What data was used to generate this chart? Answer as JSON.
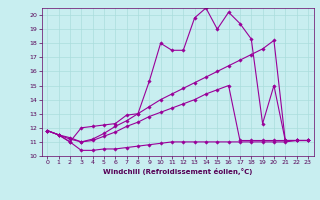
{
  "xlabel": "Windchill (Refroidissement éolien,°C)",
  "xlim": [
    -0.5,
    23.5
  ],
  "ylim": [
    10,
    20.5
  ],
  "yticks": [
    10,
    11,
    12,
    13,
    14,
    15,
    16,
    17,
    18,
    19,
    20
  ],
  "xticks": [
    0,
    1,
    2,
    3,
    4,
    5,
    6,
    7,
    8,
    9,
    10,
    11,
    12,
    13,
    14,
    15,
    16,
    17,
    18,
    19,
    20,
    21,
    22,
    23
  ],
  "background_color": "#c8eef0",
  "line_color": "#990099",
  "grid_color": "#aadddd",
  "lines": [
    {
      "x": [
        0,
        1,
        2,
        3,
        4,
        5,
        6,
        7,
        8,
        9,
        10,
        11,
        12,
        13,
        14,
        15,
        16,
        17,
        18,
        19,
        20,
        21,
        22,
        23
      ],
      "y": [
        11.8,
        11.5,
        11.0,
        10.4,
        10.4,
        10.5,
        10.5,
        10.6,
        10.7,
        10.8,
        10.9,
        11.0,
        11.0,
        11.0,
        11.0,
        11.0,
        11.0,
        11.0,
        11.0,
        11.0,
        11.0,
        11.0,
        11.1,
        11.1
      ]
    },
    {
      "x": [
        0,
        1,
        2,
        3,
        4,
        5,
        6,
        7,
        8,
        9,
        10,
        11,
        12,
        13,
        14,
        15,
        16,
        17,
        18,
        19,
        20,
        21,
        22,
        23
      ],
      "y": [
        11.8,
        11.5,
        11.0,
        12.0,
        12.1,
        12.2,
        12.3,
        12.9,
        13.0,
        15.3,
        18.0,
        17.5,
        17.5,
        19.8,
        20.5,
        19.0,
        20.2,
        19.4,
        18.3,
        12.3,
        15.0,
        11.1,
        11.1,
        11.1
      ]
    },
    {
      "x": [
        0,
        1,
        2,
        3,
        4,
        5,
        6,
        7,
        8,
        9,
        10,
        11,
        12,
        13,
        14,
        15,
        16,
        17,
        18,
        19,
        20,
        21,
        22,
        23
      ],
      "y": [
        11.8,
        11.5,
        11.3,
        11.0,
        11.2,
        11.6,
        12.1,
        12.5,
        13.0,
        13.5,
        14.0,
        14.4,
        14.8,
        15.2,
        15.6,
        16.0,
        16.4,
        16.8,
        17.2,
        17.6,
        18.2,
        11.1,
        11.1,
        11.1
      ]
    },
    {
      "x": [
        0,
        1,
        2,
        3,
        4,
        5,
        6,
        7,
        8,
        9,
        10,
        11,
        12,
        13,
        14,
        15,
        16,
        17,
        18,
        19,
        20,
        21,
        22,
        23
      ],
      "y": [
        11.8,
        11.5,
        11.2,
        11.0,
        11.1,
        11.4,
        11.7,
        12.1,
        12.4,
        12.8,
        13.1,
        13.4,
        13.7,
        14.0,
        14.4,
        14.7,
        15.0,
        11.1,
        11.1,
        11.1,
        11.1,
        11.1,
        11.1,
        11.1
      ]
    }
  ]
}
